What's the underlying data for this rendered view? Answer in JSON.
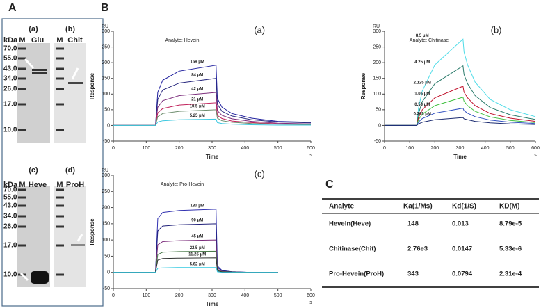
{
  "panel_a": {
    "label": "A",
    "unit": "kDa",
    "marker_lane": "M",
    "markers": [
      "70.0",
      "55.0",
      "43.0",
      "34.0",
      "26.0",
      "17.0",
      "10.0"
    ],
    "gels": [
      {
        "tag": "(a)",
        "lane": "Glu"
      },
      {
        "tag": "(b)",
        "lane": "Chit"
      },
      {
        "tag": "(c)",
        "lane": "Heve"
      },
      {
        "tag": "(d)",
        "lane": "ProH"
      }
    ]
  },
  "panel_b": {
    "label": "B"
  },
  "chart_data": [
    {
      "type": "line",
      "panel": "(a)",
      "title": "Analyte: Hevein",
      "ylabel": "Response",
      "xlabel": "Time",
      "y_unit": "RU",
      "x_unit": "s",
      "x": [
        0,
        128,
        135,
        150,
        200,
        312,
        316,
        330,
        360,
        420,
        500,
        600
      ],
      "xlim": [
        0,
        600
      ],
      "ylim": [
        -50,
        300
      ],
      "xticks": [
        0,
        100,
        200,
        300,
        400,
        500,
        600
      ],
      "yticks": [
        -50,
        0,
        50,
        100,
        150,
        200,
        250,
        300
      ],
      "series": [
        {
          "name": "168 μM",
          "color": "#1f1f9e",
          "values": [
            0,
            0,
            106,
            144,
            173,
            192,
            86,
            58,
            38,
            23,
            13,
            10
          ]
        },
        {
          "name": "84 μM",
          "color": "#2b2b80",
          "values": [
            0,
            0,
            83,
            113,
            135,
            150,
            68,
            45,
            30,
            18,
            11,
            8
          ]
        },
        {
          "name": "42 μM",
          "color": "#7a2a7a",
          "values": [
            0,
            0,
            58,
            79,
            95,
            105,
            47,
            32,
            21,
            13,
            7,
            5
          ]
        },
        {
          "name": "21 μM",
          "color": "#c0205a",
          "values": [
            0,
            0,
            40,
            54,
            65,
            72,
            32,
            22,
            14,
            9,
            5,
            4
          ]
        },
        {
          "name": "10.5 μM",
          "color": "#6a8a6a",
          "values": [
            0,
            0,
            28,
            38,
            45,
            50,
            23,
            15,
            10,
            6,
            4,
            3
          ]
        },
        {
          "name": "5.25 μM",
          "color": "#3cc8e0",
          "values": [
            0,
            0,
            11,
            15,
            18,
            20,
            9,
            6,
            4,
            2,
            1,
            1
          ]
        }
      ]
    },
    {
      "type": "line",
      "panel": "(b)",
      "title": "Analyte: Chitinase",
      "ylabel": "Response",
      "xlabel": "Time",
      "y_unit": "RU",
      "x_unit": "s",
      "x": [
        0,
        128,
        135,
        150,
        200,
        312,
        316,
        330,
        360,
        420,
        500,
        600
      ],
      "xlim": [
        0,
        600
      ],
      "ylim": [
        -50,
        300
      ],
      "xticks": [
        0,
        100,
        200,
        300,
        400,
        500,
        600
      ],
      "yticks": [
        -50,
        0,
        50,
        100,
        150,
        200,
        250,
        300
      ],
      "series": [
        {
          "name": "8.5 μM",
          "color": "#4fdce8",
          "values": [
            0,
            0,
            55,
            110,
            193,
            275,
            234,
            193,
            138,
            83,
            50,
            28
          ]
        },
        {
          "name": "4.25 μM",
          "color": "#2a7a6a",
          "values": [
            0,
            0,
            38,
            76,
            133,
            190,
            162,
            133,
            95,
            57,
            34,
            19
          ]
        },
        {
          "name": "2.125 μM",
          "color": "#c0102a",
          "values": [
            0,
            0,
            25,
            50,
            88,
            125,
            106,
            88,
            63,
            38,
            23,
            13
          ]
        },
        {
          "name": "1.06 μM",
          "color": "#40c040",
          "values": [
            0,
            0,
            18,
            36,
            63,
            90,
            77,
            63,
            45,
            27,
            16,
            9
          ]
        },
        {
          "name": "0.53 μM",
          "color": "#3050c0",
          "values": [
            0,
            0,
            11,
            22,
            39,
            55,
            47,
            39,
            28,
            17,
            10,
            6
          ]
        },
        {
          "name": "0.265 μM",
          "color": "#1a2a70",
          "values": [
            0,
            0,
            5,
            10,
            18,
            25,
            21,
            18,
            13,
            8,
            5,
            3
          ]
        }
      ]
    },
    {
      "type": "line",
      "panel": "(c)",
      "title": "Analyte: Pro-Hevein",
      "ylabel": "Response",
      "xlabel": "Time",
      "y_unit": "RU",
      "x_unit": "s",
      "x": [
        0,
        128,
        135,
        150,
        200,
        312,
        316,
        330,
        360,
        420,
        500,
        600
      ],
      "xlim": [
        0,
        600
      ],
      "ylim": [
        -50,
        300
      ],
      "xticks": [
        0,
        100,
        200,
        300,
        400,
        500,
        600
      ],
      "yticks": [
        -50,
        0,
        50,
        100,
        150,
        200,
        250,
        300
      ],
      "series": [
        {
          "name": "180 μM",
          "color": "#3030b0",
          "values": [
            0,
            0,
            166,
            185,
            191,
            195,
            20,
            6,
            2,
            0,
            0,
            null
          ]
        },
        {
          "name": "90 μM",
          "color": "#20207a",
          "values": [
            0,
            0,
            128,
            143,
            147,
            150,
            15,
            5,
            2,
            0,
            0,
            null
          ]
        },
        {
          "name": "45 μM",
          "color": "#7a2a7a",
          "values": [
            0,
            0,
            85,
            95,
            98,
            100,
            10,
            3,
            1,
            0,
            0,
            null
          ]
        },
        {
          "name": "22.5 μM",
          "color": "#4a7a4a",
          "values": [
            0,
            0,
            55,
            62,
            64,
            65,
            7,
            2,
            1,
            0,
            0,
            null
          ]
        },
        {
          "name": "11.25 μM",
          "color": "#303030",
          "values": [
            0,
            0,
            38,
            43,
            44,
            45,
            5,
            1,
            0,
            0,
            0,
            null
          ]
        },
        {
          "name": "5.62 μM",
          "color": "#30c8e0",
          "values": [
            0,
            0,
            13,
            14,
            15,
            15,
            2,
            0,
            0,
            0,
            0,
            null
          ]
        }
      ]
    }
  ],
  "panel_c": {
    "label": "C",
    "columns": [
      "Analyte",
      "Ka(1/Ms)",
      "Kd(1/S)",
      "KD(M)"
    ],
    "rows": [
      [
        "Hevein(Heve)",
        "148",
        "0.013",
        "8.79e-5"
      ],
      [
        "Chitinase(Chit)",
        "2.76e3",
        "0.0147",
        "5.33e-6"
      ],
      [
        "Pro-Hevein(ProH)",
        "343",
        "0.0794",
        "2.31e-4"
      ]
    ]
  }
}
